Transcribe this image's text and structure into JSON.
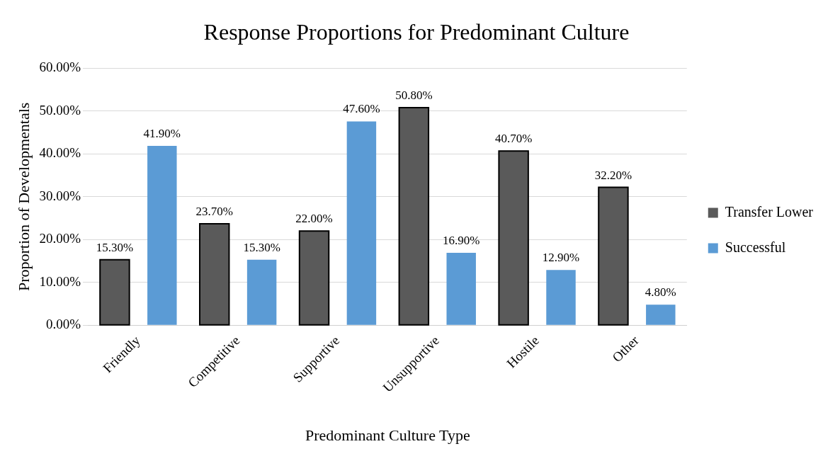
{
  "chart_data": {
    "type": "bar",
    "title": "Response Proportions for Predominant Culture",
    "xlabel": "Predominant Culture Type",
    "ylabel": "Proportion of Developmentals",
    "categories": [
      "Friendly",
      "Competitive",
      "Supportive",
      "Unsupportive",
      "Hostile",
      "Other"
    ],
    "series": [
      {
        "name": "Transfer Lower",
        "color": "#5a5a5a",
        "values": [
          15.3,
          23.7,
          22.0,
          50.8,
          40.7,
          32.2
        ],
        "value_labels": [
          "15.30%",
          "23.70%",
          "22.00%",
          "50.80%",
          "40.70%",
          "32.20%"
        ]
      },
      {
        "name": "Successful",
        "color": "#5b9bd5",
        "values": [
          41.9,
          15.3,
          47.6,
          16.9,
          12.9,
          4.8
        ],
        "value_labels": [
          "41.90%",
          "15.30%",
          "47.60%",
          "16.90%",
          "12.90%",
          "4.80%"
        ]
      }
    ],
    "ylim": [
      0,
      60
    ],
    "yticks": [
      {
        "value": 0,
        "label": "0.00%"
      },
      {
        "value": 10,
        "label": "10.00%"
      },
      {
        "value": 20,
        "label": "20.00%"
      },
      {
        "value": 30,
        "label": "30.00%"
      },
      {
        "value": 40,
        "label": "40.00%"
      },
      {
        "value": 50,
        "label": "50.00%"
      },
      {
        "value": 60,
        "label": "60.00%"
      }
    ],
    "grid": "y",
    "legend": "right"
  }
}
